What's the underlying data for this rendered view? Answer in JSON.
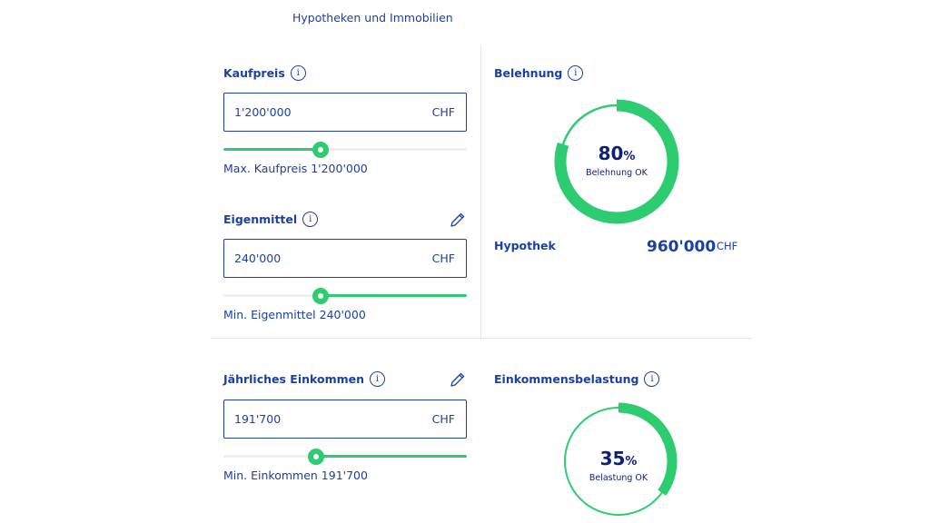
{
  "top_tab": "Hypotheken und Immobilien",
  "kaufpreis": {
    "label": "Kaufpreis",
    "value": "1'200'000",
    "currency": "CHF",
    "slider_percent": 40,
    "hint": "Max. Kaufpreis 1'200'000"
  },
  "eigenmittel": {
    "label": "Eigenmittel",
    "value": "240'000",
    "currency": "CHF",
    "slider_percent": 40,
    "hint": "Min. Eigenmittel 240'000"
  },
  "einkommen": {
    "label": "Jährliches Einkommen",
    "value": "191'700",
    "currency": "CHF",
    "slider_percent": 38,
    "hint": "Min. Einkommen 191'700"
  },
  "belehnung": {
    "label": "Belehnung",
    "value": "80",
    "unit": "%",
    "status": "Belehnung OK",
    "percent": 80
  },
  "hypothek": {
    "label": "Hypothek",
    "value": "960'000",
    "currency": "CHF"
  },
  "belastung": {
    "label": "Einkommensbelastung",
    "value": "35",
    "unit": "%",
    "status": "Belastung OK",
    "percent": 35
  },
  "colors": {
    "brand_blue": "#1a3fa6",
    "dark_blue": "#0e1f7a",
    "accent_green": "#2ecc71"
  },
  "icons": {
    "info": "i",
    "edit": "pencil-icon"
  }
}
